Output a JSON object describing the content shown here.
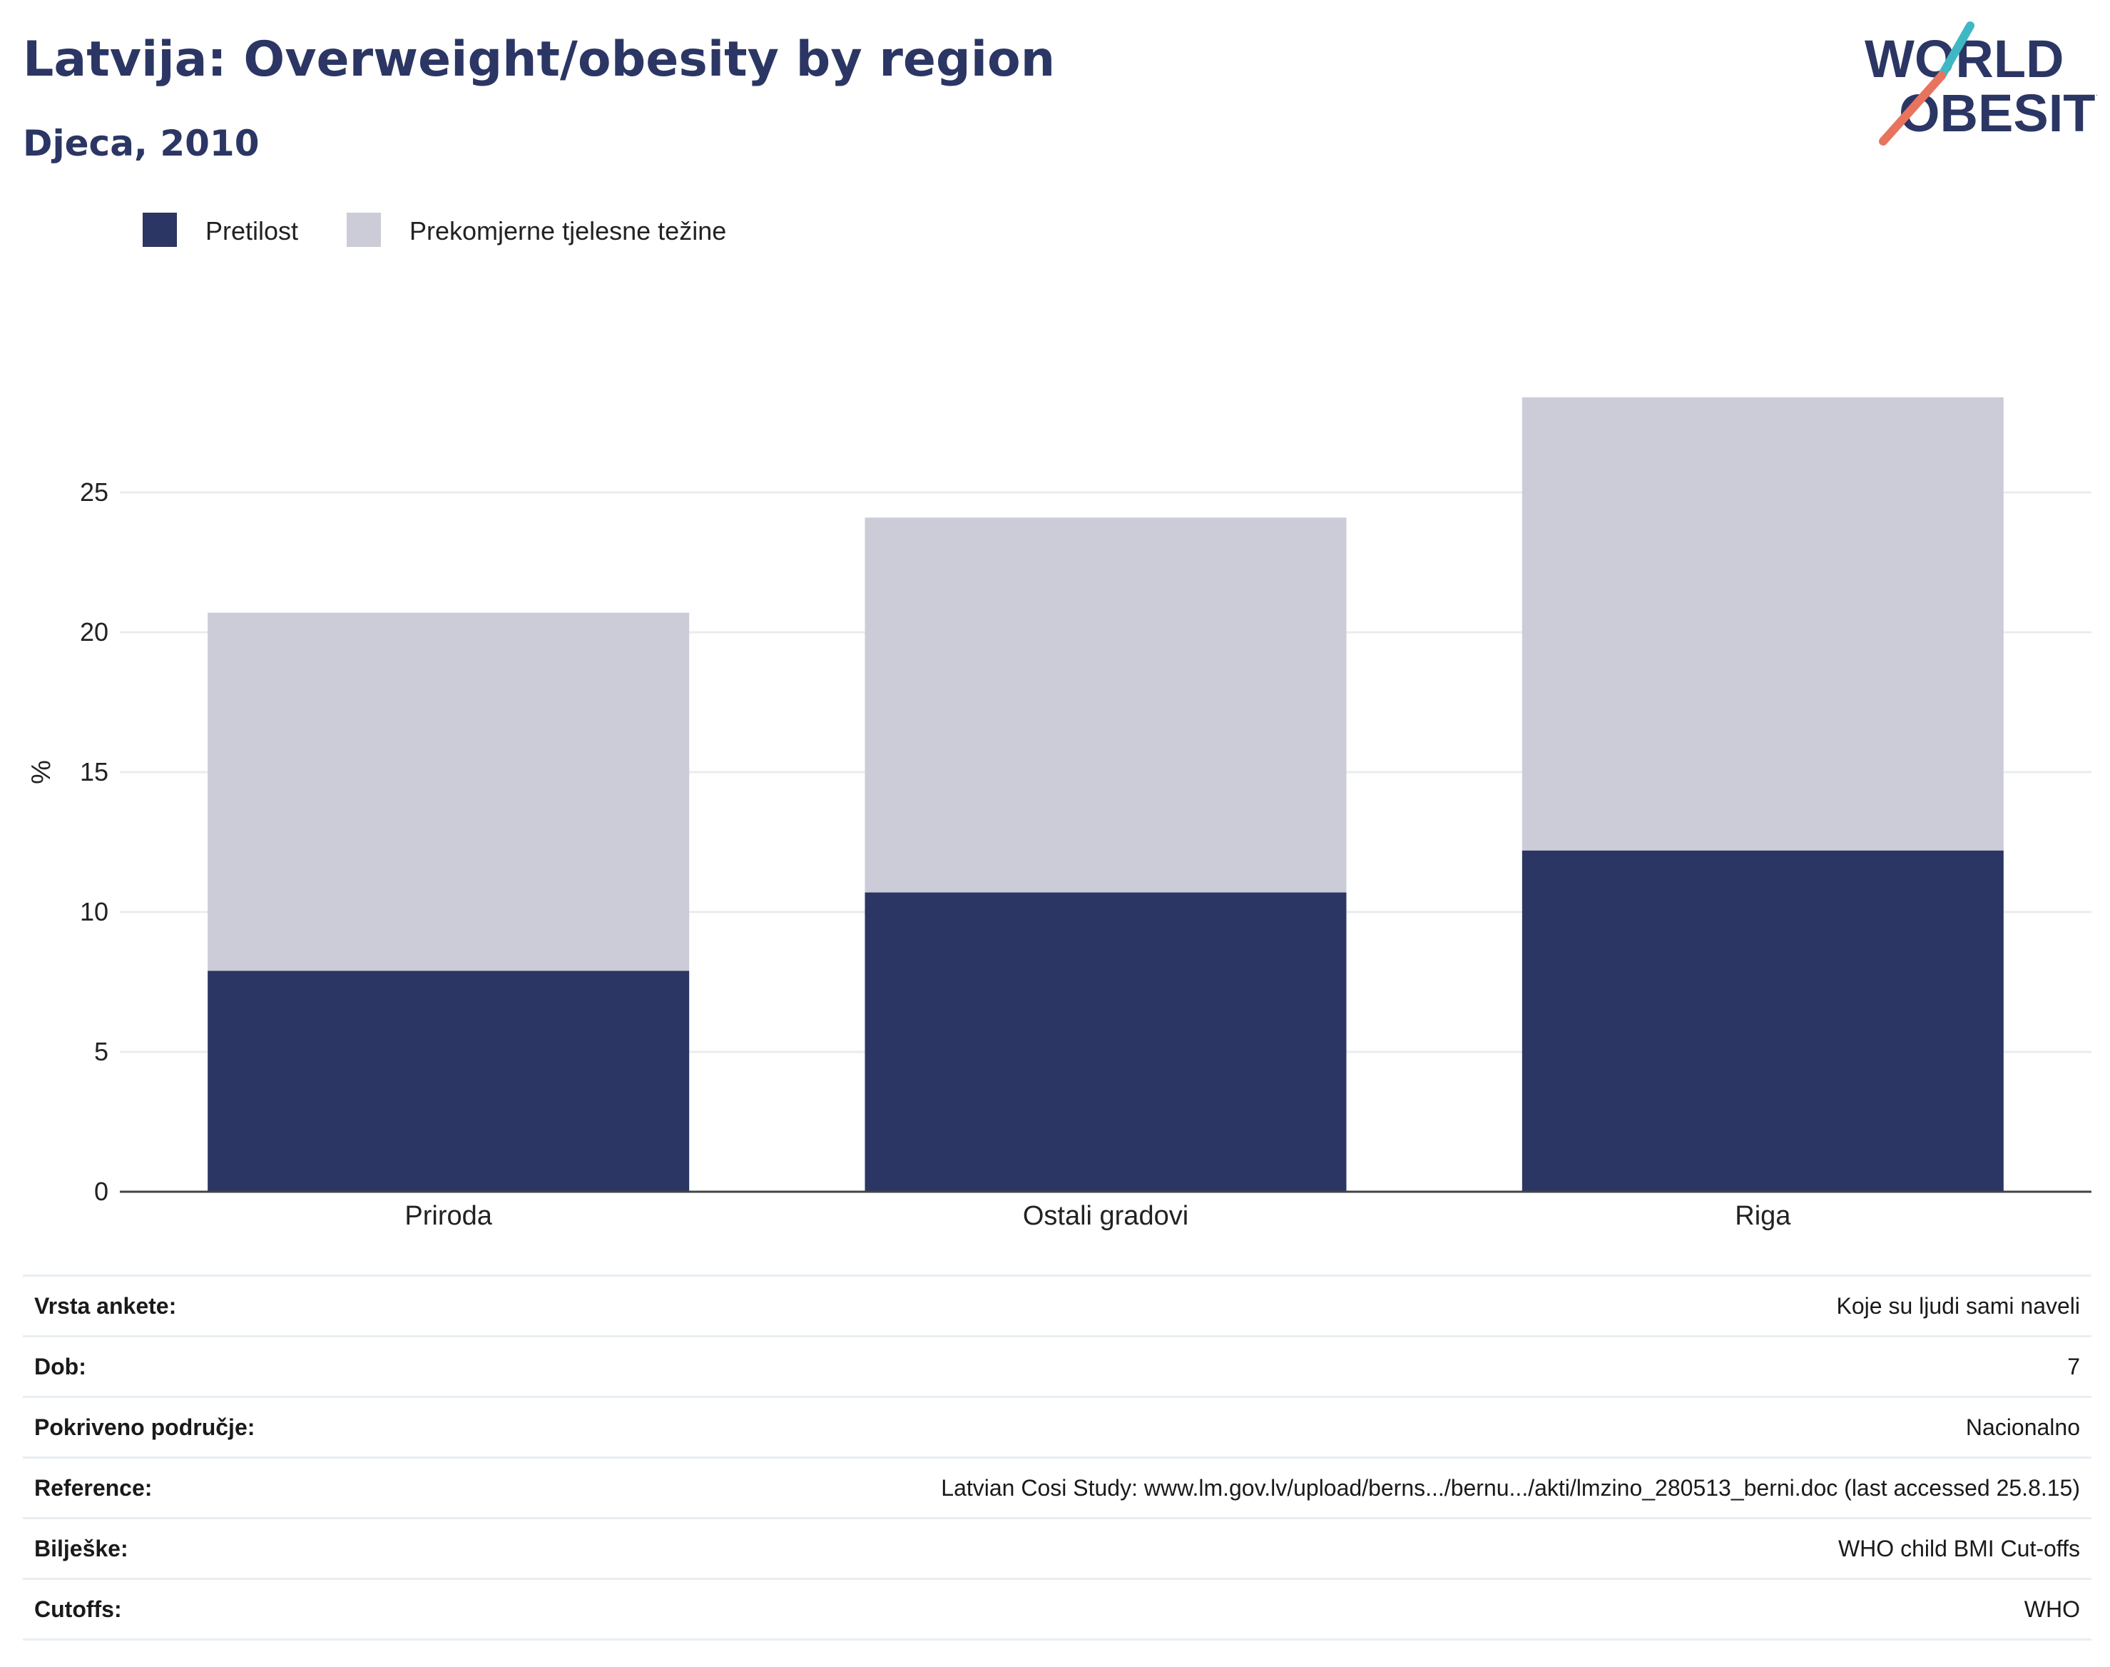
{
  "header": {
    "title": "Latvija: Overweight/obesity by region",
    "subtitle": "Djeca, 2010"
  },
  "logo": {
    "line1": "WORLD",
    "line2": "OBESITY"
  },
  "chart_data": {
    "type": "bar",
    "stacked": true,
    "categories": [
      "Priroda",
      "Ostali gradovi",
      "Riga"
    ],
    "series": [
      {
        "name": "Pretilost",
        "values": [
          7.9,
          10.7,
          12.2
        ],
        "color": "#2b3664"
      },
      {
        "name": "Prekomjerne tjelesne težine",
        "values": [
          12.8,
          13.4,
          16.2
        ],
        "color": "#cbccd7"
      }
    ],
    "ylabel": "%",
    "xlabel": "",
    "ylim": [
      0,
      30
    ],
    "yticks": [
      0,
      5,
      10,
      15,
      20,
      25
    ],
    "grid": true,
    "legend": "top-left"
  },
  "info": [
    {
      "label": "Vrsta ankete:",
      "value": "Koje su ljudi sami naveli"
    },
    {
      "label": "Dob:",
      "value": "7"
    },
    {
      "label": "Pokriveno područje:",
      "value": "Nacionalno"
    },
    {
      "label": "Reference:",
      "value": "Latvian Cosi Study: www.lm.gov.lv/upload/berns.../bernu.../akti/lmzino_280513_berni.doc (last accessed 25.8.15)"
    },
    {
      "label": "Bilješke:",
      "value": "WHO child BMI Cut-offs"
    },
    {
      "label": "Cutoffs:",
      "value": "WHO"
    }
  ]
}
